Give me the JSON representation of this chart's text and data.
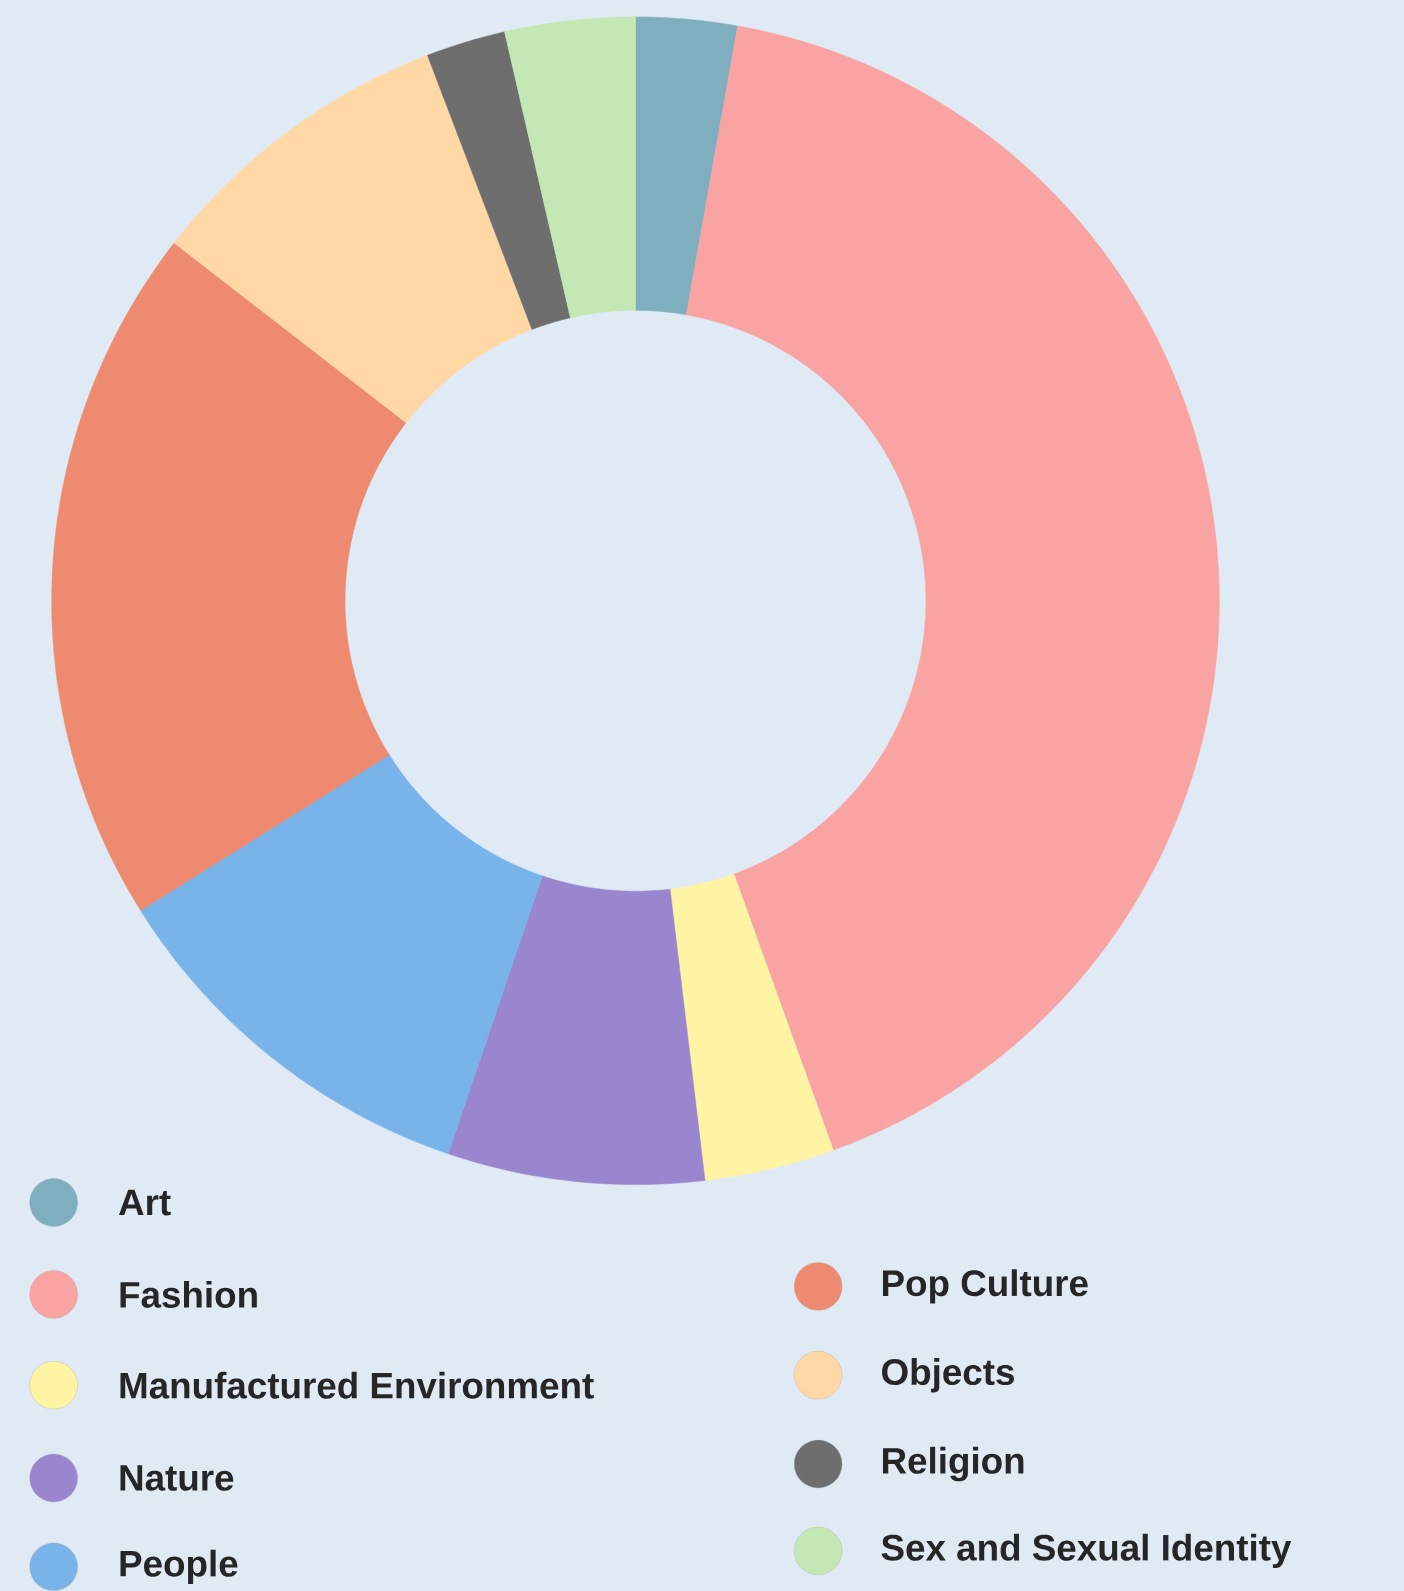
{
  "chart_data": {
    "type": "donut",
    "categories": [
      "Art",
      "Fashion",
      "Manufactured Environment",
      "Nature",
      "People",
      "Pop Culture",
      "Objects",
      "Religion",
      "Sex and Sexual Identity"
    ],
    "values": [
      2.8,
      41.7,
      3.6,
      7.1,
      10.9,
      19.4,
      8.7,
      2.2,
      3.6
    ],
    "colors": [
      "#7fafbf",
      "#f9a3a3",
      "#fff4a3",
      "#9a86cf",
      "#78b4ea",
      "#ee8a70",
      "#ffd8a5",
      "#6e6e6e",
      "#c4e8b4"
    ],
    "legend": "bottom"
  }
}
